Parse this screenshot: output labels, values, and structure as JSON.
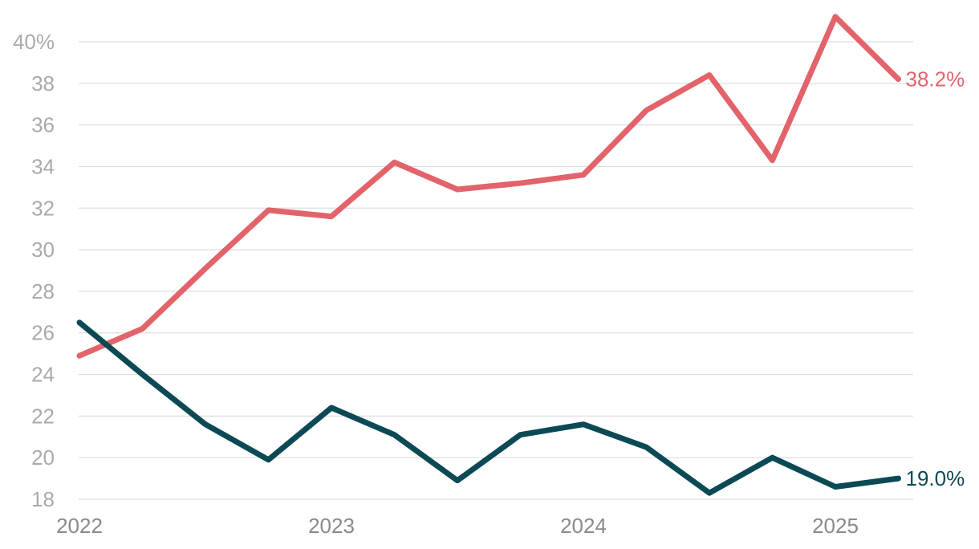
{
  "chart_data": {
    "type": "line",
    "x": [
      2022.0,
      2022.25,
      2022.5,
      2022.75,
      2023.0,
      2023.25,
      2023.5,
      2023.75,
      2024.0,
      2024.25,
      2024.5,
      2024.75,
      2025.0,
      2025.25
    ],
    "series": [
      {
        "color": "#e3636b",
        "values": [
          24.9,
          26.2,
          29.1,
          31.9,
          31.6,
          34.2,
          32.9,
          33.2,
          33.6,
          36.7,
          38.4,
          34.3,
          41.2,
          38.2
        ],
        "end_label": "38.2%"
      },
      {
        "color": "#0b4a55",
        "values": [
          26.5,
          24.0,
          21.6,
          19.9,
          22.4,
          21.1,
          18.9,
          21.1,
          21.6,
          20.5,
          18.3,
          20.0,
          18.6,
          19.0
        ],
        "end_label": "19.0%"
      }
    ],
    "x_ticks": [
      {
        "value": 2022,
        "label": "2022"
      },
      {
        "value": 2023,
        "label": "2023"
      },
      {
        "value": 2024,
        "label": "2024"
      },
      {
        "value": 2025,
        "label": "2025"
      }
    ],
    "y_ticks": [
      {
        "value": 18,
        "label": "18"
      },
      {
        "value": 20,
        "label": "20"
      },
      {
        "value": 22,
        "label": "22"
      },
      {
        "value": 24,
        "label": "24"
      },
      {
        "value": 26,
        "label": "26"
      },
      {
        "value": 28,
        "label": "28"
      },
      {
        "value": 30,
        "label": "30"
      },
      {
        "value": 32,
        "label": "32"
      },
      {
        "value": 34,
        "label": "34"
      },
      {
        "value": 36,
        "label": "36"
      },
      {
        "value": 38,
        "label": "38"
      },
      {
        "value": 40,
        "label": "40%"
      }
    ],
    "xlim": [
      2022.0,
      2025.3
    ],
    "ylim": [
      18,
      40
    ],
    "grid": true,
    "legend": "none (direct end labels)",
    "title": "",
    "xlabel": "",
    "ylabel": ""
  }
}
